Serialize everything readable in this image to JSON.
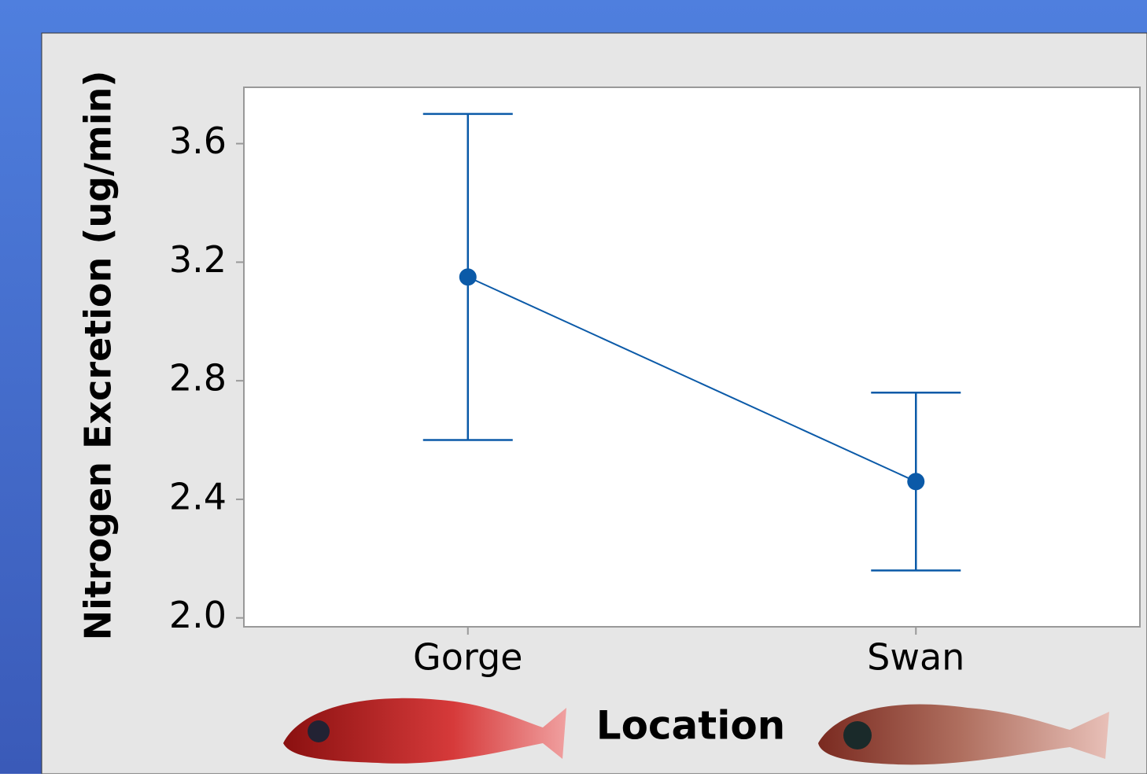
{
  "chart_data": {
    "type": "interval",
    "x_label": "Location",
    "y_label": "Nitrogen Excretion (ug/min)",
    "categories": [
      "Gorge",
      "Swan"
    ],
    "values": [
      3.15,
      2.46
    ],
    "error": [
      0.55,
      0.3
    ],
    "color": "#0b5aa8",
    "ylim": [
      1.97,
      3.79
    ],
    "yticks": [
      {
        "value": 2.0,
        "label": "2.0"
      },
      {
        "value": 2.4,
        "label": "2.4"
      },
      {
        "value": 2.8,
        "label": "2.8"
      },
      {
        "value": 3.2,
        "label": "3.2"
      },
      {
        "value": 3.6,
        "label": "3.6"
      }
    ],
    "grid": false
  }
}
